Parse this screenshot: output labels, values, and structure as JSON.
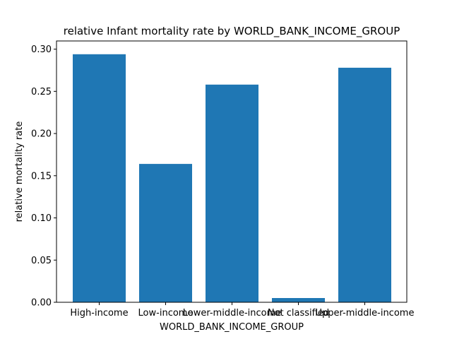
{
  "chart_data": {
    "type": "bar",
    "title": "relative Infant mortality rate by WORLD_BANK_INCOME_GROUP",
    "xlabel": "WORLD_BANK_INCOME_GROUP",
    "ylabel": "relative mortality rate",
    "categories": [
      "High-income",
      "Low-income",
      "Lower-middle-income",
      "Not classified",
      "Upper-middle-income"
    ],
    "values": [
      0.294,
      0.164,
      0.258,
      0.005,
      0.278
    ],
    "ylim": [
      0,
      0.3
    ],
    "yticks": [
      "0.00",
      "0.05",
      "0.10",
      "0.15",
      "0.20",
      "0.25",
      "0.30"
    ],
    "grid": false,
    "bar_color": "#1f77b4"
  }
}
